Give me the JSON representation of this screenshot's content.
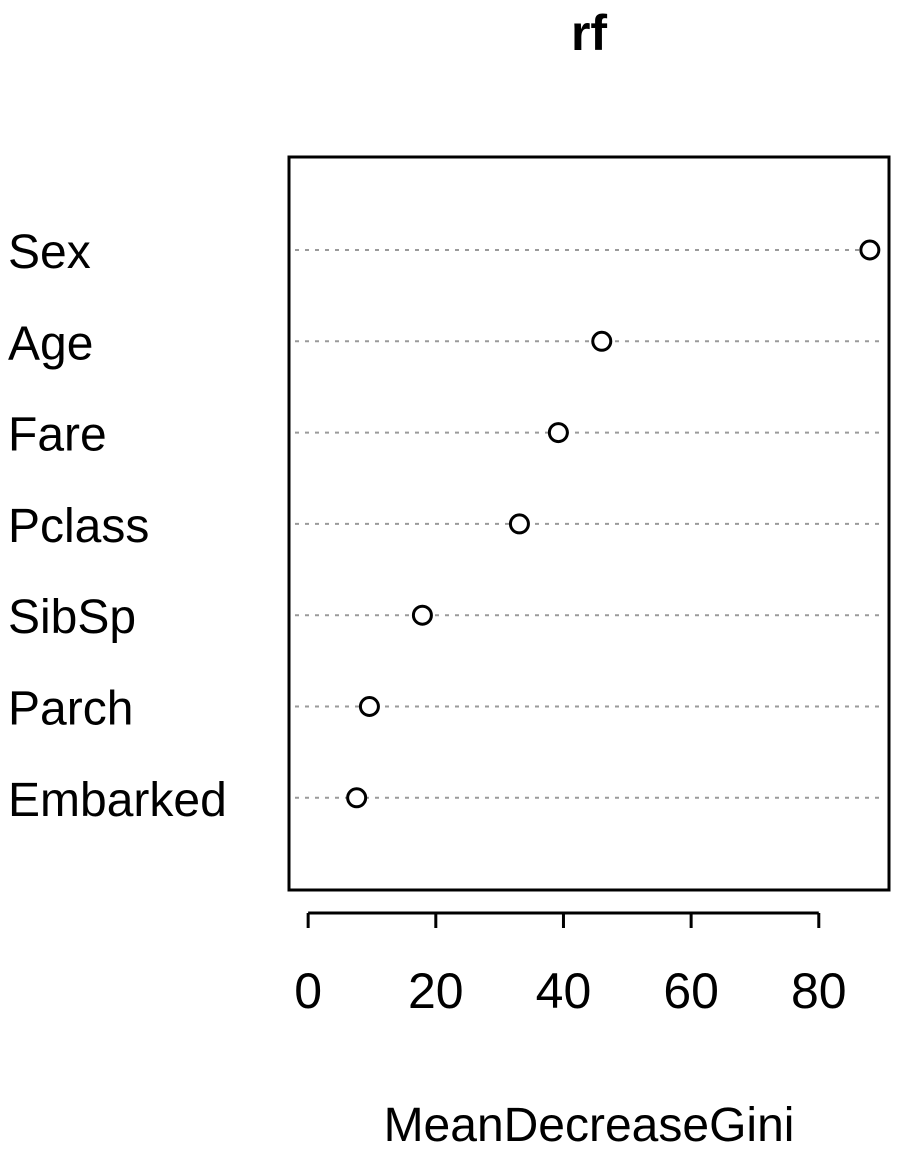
{
  "chart_data": {
    "type": "scatter",
    "title": "rf",
    "xlabel": "MeanDecreaseGini",
    "ylabel": "",
    "categories": [
      "Sex",
      "Age",
      "Fare",
      "Pclass",
      "SibSp",
      "Parch",
      "Embarked"
    ],
    "values": [
      88.0,
      46.0,
      39.2,
      33.1,
      17.9,
      9.6,
      7.6
    ],
    "xlim": [
      -3.0,
      91.0
    ],
    "xticks": [
      0,
      20,
      40,
      60,
      80
    ],
    "grid": "dotted horizontal guide line per variable",
    "legend": "none",
    "marker": "open circle",
    "colors": {
      "marker_stroke": "#000000",
      "marker_fill": "#ffffff",
      "guide": "#9a9a9a",
      "frame": "#000000",
      "text": "#000000"
    }
  }
}
